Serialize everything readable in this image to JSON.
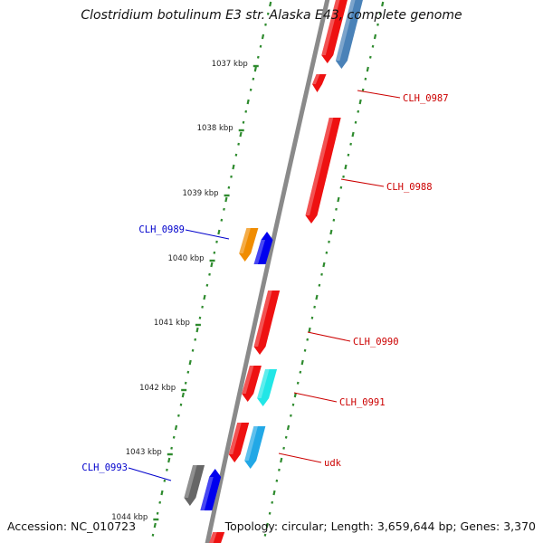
{
  "title": "Clostridium botulinum E3 str. Alaska E43, complete genome",
  "footer": {
    "accession": "Accession: NC_010723",
    "summary": "Topology: circular; Length: 3,659,644 bp; Genes: 3,370"
  },
  "colors": {
    "backbone": "#8a8a8a",
    "track_dots": "#2e8b2e",
    "forward_label": "#cc0000",
    "reverse_label": "#0000cc"
  },
  "ruler": {
    "unit": "kbp",
    "ticks": [
      "1037 kbp",
      "1038 kbp",
      "1039 kbp",
      "1040 kbp",
      "1041 kbp",
      "1042 kbp",
      "1043 kbp",
      "1044 kbp"
    ]
  },
  "gene_labels": [
    {
      "text": "CLH_0987",
      "strand": "forward"
    },
    {
      "text": "CLH_0988",
      "strand": "forward"
    },
    {
      "text": "CLH_0989",
      "strand": "reverse"
    },
    {
      "text": "CLH_0990",
      "strand": "forward"
    },
    {
      "text": "CLH_0991",
      "strand": "forward"
    },
    {
      "text": "udk",
      "strand": "forward"
    },
    {
      "text": "CLH_0993",
      "strand": "reverse"
    }
  ],
  "features": [
    {
      "name": "CLH_0987",
      "strand": "forward",
      "color": "#ee0000"
    },
    {
      "name": "CLH_0988",
      "strand": "forward",
      "color": "#ee0000"
    },
    {
      "name": "CLH_0989",
      "strand": "reverse",
      "color": "#0000ee"
    },
    {
      "name": "CLH_0990",
      "strand": "forward",
      "color": "#ee0000"
    },
    {
      "name": "CLH_0991",
      "strand": "forward",
      "color": "#ee0000"
    },
    {
      "name": "udk",
      "strand": "forward",
      "color": "#ee0000"
    },
    {
      "name": "CLH_0993",
      "strand": "reverse",
      "color": "#0000ee"
    }
  ]
}
